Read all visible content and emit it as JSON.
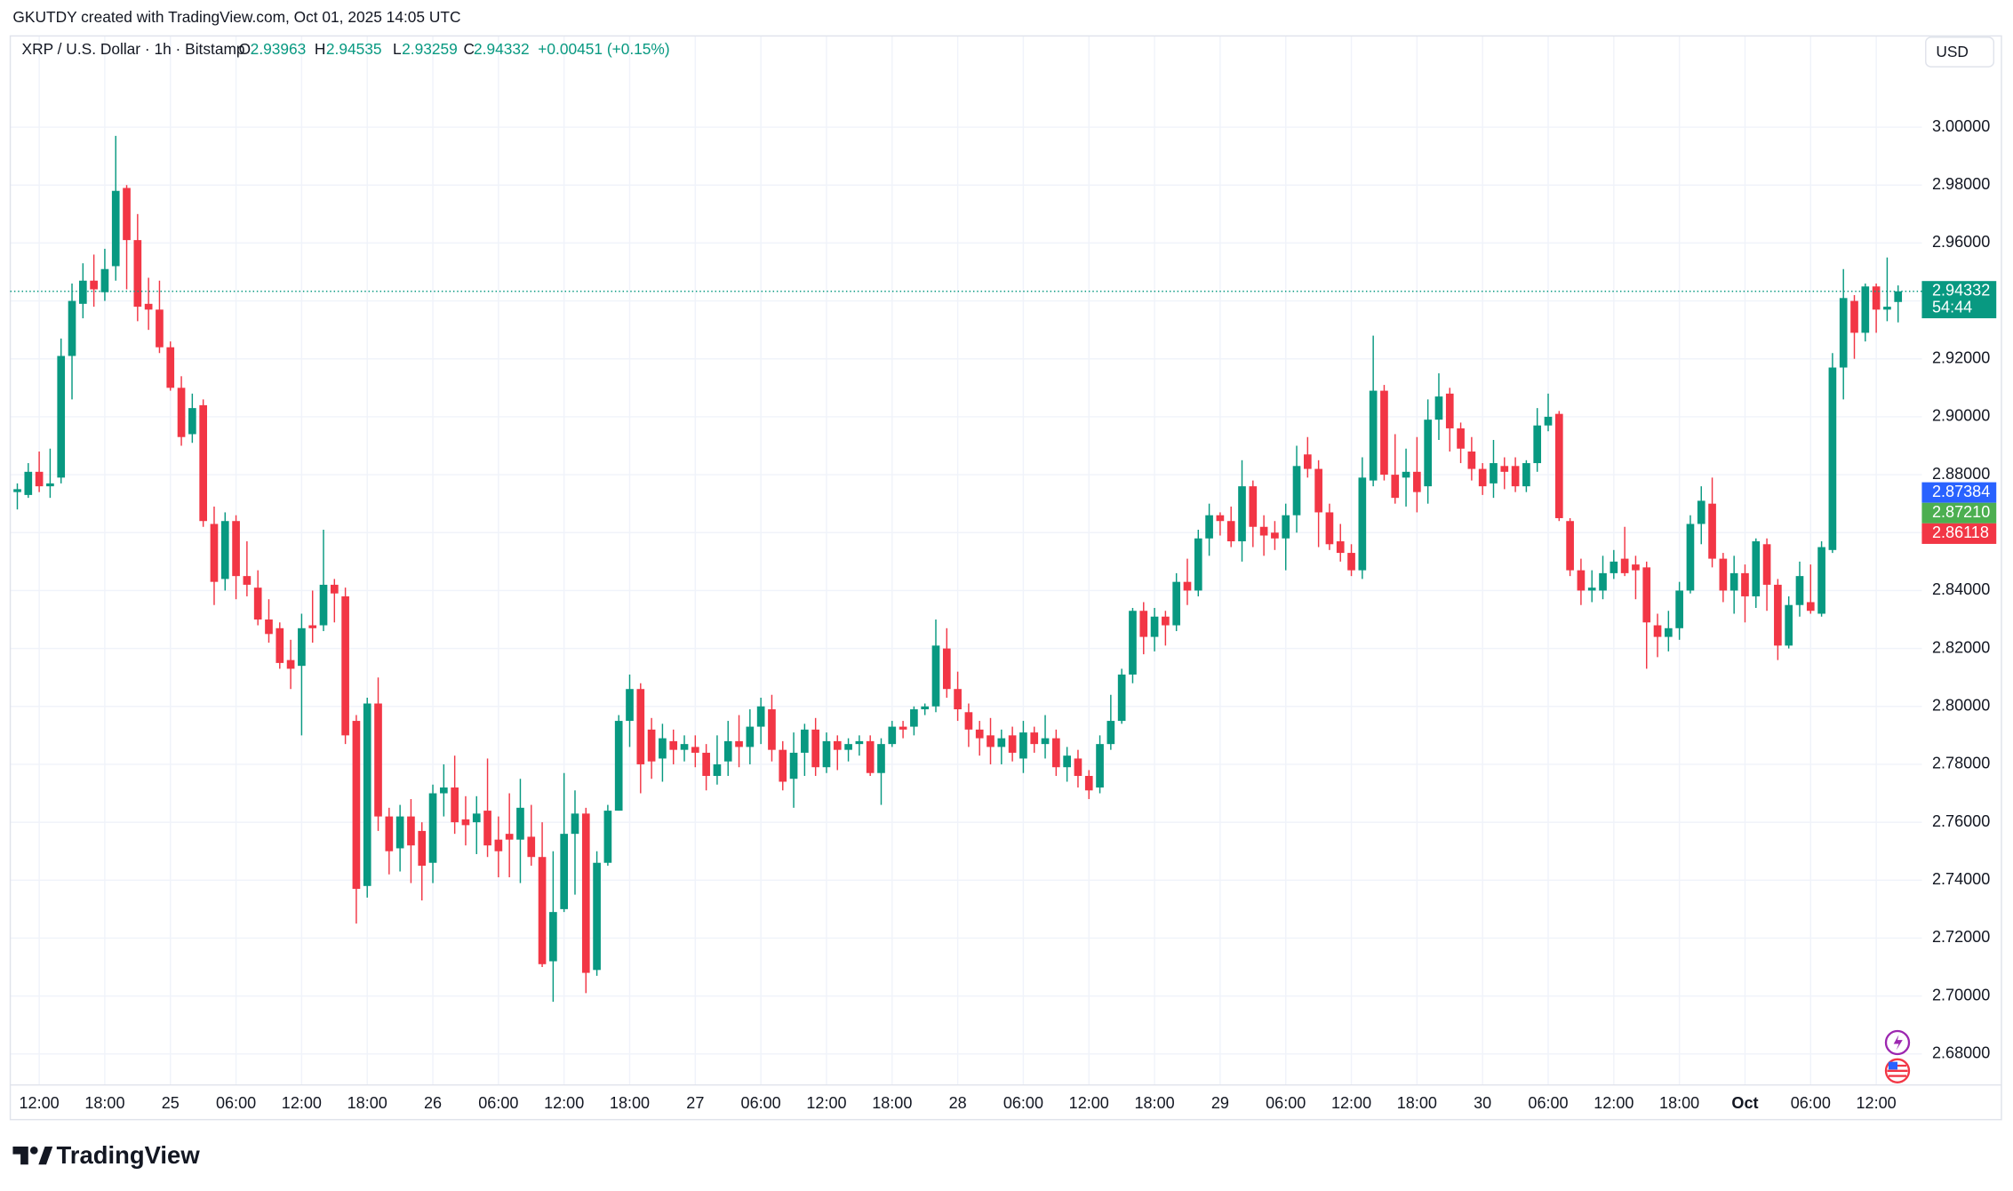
{
  "header": {
    "attribution": "GKUTDY created with TradingView.com, Oct 01, 2025 14:05 UTC"
  },
  "legend": {
    "symbol": "XRP / U.S. Dollar · 1h · Bitstamp",
    "open_label": "O",
    "high_label": "H",
    "low_label": "L",
    "close_label": "C",
    "change": "+0.00451 (+0.15%)"
  },
  "footer": {
    "brand": "TradingView"
  },
  "chart_data": {
    "type": "candlestick",
    "currency": "USD",
    "up_color": "#089981",
    "down_color": "#f23645",
    "grid": true,
    "x": [
      "2025-09-24 10:00",
      "2025-09-24 11:00",
      "2025-09-24 12:00",
      "2025-09-24 13:00",
      "2025-09-24 14:00",
      "2025-09-24 15:00",
      "2025-09-24 16:00",
      "2025-09-24 17:00",
      "2025-09-24 18:00",
      "2025-09-24 19:00",
      "2025-09-24 20:00",
      "2025-09-24 21:00",
      "2025-09-24 22:00",
      "2025-09-24 23:00",
      "2025-09-25 00:00",
      "2025-09-25 01:00",
      "2025-09-25 02:00",
      "2025-09-25 03:00",
      "2025-09-25 04:00",
      "2025-09-25 05:00",
      "2025-09-25 06:00",
      "2025-09-25 07:00",
      "2025-09-25 08:00",
      "2025-09-25 09:00",
      "2025-09-25 10:00",
      "2025-09-25 11:00",
      "2025-09-25 12:00",
      "2025-09-25 13:00",
      "2025-09-25 14:00",
      "2025-09-25 15:00",
      "2025-09-25 16:00",
      "2025-09-25 17:00",
      "2025-09-25 18:00",
      "2025-09-25 19:00",
      "2025-09-25 20:00",
      "2025-09-25 21:00",
      "2025-09-25 22:00",
      "2025-09-25 23:00",
      "2025-09-26 00:00",
      "2025-09-26 01:00",
      "2025-09-26 02:00",
      "2025-09-26 03:00",
      "2025-09-26 04:00",
      "2025-09-26 05:00",
      "2025-09-26 06:00",
      "2025-09-26 07:00",
      "2025-09-26 08:00",
      "2025-09-26 09:00",
      "2025-09-26 10:00",
      "2025-09-26 11:00",
      "2025-09-26 12:00",
      "2025-09-26 13:00",
      "2025-09-26 14:00",
      "2025-09-26 15:00",
      "2025-09-26 16:00",
      "2025-09-26 17:00",
      "2025-09-26 18:00",
      "2025-09-26 19:00",
      "2025-09-26 20:00",
      "2025-09-26 21:00",
      "2025-09-26 22:00",
      "2025-09-26 23:00",
      "2025-09-27 00:00",
      "2025-09-27 01:00",
      "2025-09-27 02:00",
      "2025-09-27 03:00",
      "2025-09-27 04:00",
      "2025-09-27 05:00",
      "2025-09-27 06:00",
      "2025-09-27 07:00",
      "2025-09-27 08:00",
      "2025-09-27 09:00",
      "2025-09-27 10:00",
      "2025-09-27 11:00",
      "2025-09-27 12:00",
      "2025-09-27 13:00",
      "2025-09-27 14:00",
      "2025-09-27 15:00",
      "2025-09-27 16:00",
      "2025-09-27 17:00",
      "2025-09-27 18:00",
      "2025-09-27 19:00",
      "2025-09-27 20:00",
      "2025-09-27 21:00",
      "2025-09-27 22:00",
      "2025-09-27 23:00",
      "2025-09-28 00:00",
      "2025-09-28 01:00",
      "2025-09-28 02:00",
      "2025-09-28 03:00",
      "2025-09-28 04:00",
      "2025-09-28 05:00",
      "2025-09-28 06:00",
      "2025-09-28 07:00",
      "2025-09-28 08:00",
      "2025-09-28 09:00",
      "2025-09-28 10:00",
      "2025-09-28 11:00",
      "2025-09-28 12:00",
      "2025-09-28 13:00",
      "2025-09-28 14:00",
      "2025-09-28 15:00",
      "2025-09-28 16:00",
      "2025-09-28 17:00",
      "2025-09-28 18:00",
      "2025-09-28 19:00",
      "2025-09-28 20:00",
      "2025-09-28 21:00",
      "2025-09-28 22:00",
      "2025-09-28 23:00",
      "2025-09-29 00:00",
      "2025-09-29 01:00",
      "2025-09-29 02:00",
      "2025-09-29 03:00",
      "2025-09-29 04:00",
      "2025-09-29 05:00",
      "2025-09-29 06:00",
      "2025-09-29 07:00",
      "2025-09-29 08:00",
      "2025-09-29 09:00",
      "2025-09-29 10:00",
      "2025-09-29 11:00",
      "2025-09-29 12:00",
      "2025-09-29 13:00",
      "2025-09-29 14:00",
      "2025-09-29 15:00",
      "2025-09-29 16:00",
      "2025-09-29 17:00",
      "2025-09-29 18:00",
      "2025-09-29 19:00",
      "2025-09-29 20:00",
      "2025-09-29 21:00",
      "2025-09-29 22:00",
      "2025-09-29 23:00",
      "2025-09-30 00:00",
      "2025-09-30 01:00",
      "2025-09-30 02:00",
      "2025-09-30 03:00",
      "2025-09-30 04:00",
      "2025-09-30 05:00",
      "2025-09-30 06:00",
      "2025-09-30 07:00",
      "2025-09-30 08:00",
      "2025-09-30 09:00",
      "2025-09-30 10:00",
      "2025-09-30 11:00",
      "2025-09-30 12:00",
      "2025-09-30 13:00",
      "2025-09-30 14:00",
      "2025-09-30 15:00",
      "2025-09-30 16:00",
      "2025-09-30 17:00",
      "2025-09-30 18:00",
      "2025-09-30 19:00",
      "2025-09-30 20:00",
      "2025-09-30 21:00",
      "2025-09-30 22:00",
      "2025-09-30 23:00",
      "2025-10-01 00:00",
      "2025-10-01 01:00",
      "2025-10-01 02:00",
      "2025-10-01 03:00",
      "2025-10-01 04:00",
      "2025-10-01 05:00",
      "2025-10-01 06:00",
      "2025-10-01 07:00",
      "2025-10-01 08:00",
      "2025-10-01 09:00",
      "2025-10-01 10:00",
      "2025-10-01 11:00",
      "2025-10-01 12:00",
      "2025-10-01 13:00",
      "2025-10-01 14:00"
    ],
    "open": [
      2.874,
      2.873,
      2.881,
      2.876,
      2.879,
      2.921,
      2.939,
      2.947,
      2.943,
      2.952,
      2.979,
      2.961,
      2.939,
      2.937,
      2.924,
      2.91,
      2.894,
      2.904,
      2.863,
      2.844,
      2.864,
      2.845,
      2.841,
      2.83,
      2.827,
      2.816,
      2.814,
      2.828,
      2.828,
      2.842,
      2.838,
      2.795,
      2.738,
      2.801,
      2.762,
      2.751,
      2.762,
      2.757,
      2.746,
      2.77,
      2.772,
      2.761,
      2.76,
      2.764,
      2.754,
      2.756,
      2.754,
      2.755,
      2.748,
      2.712,
      2.73,
      2.756,
      2.763,
      2.709,
      2.746,
      2.764,
      2.795,
      2.806,
      2.792,
      2.782,
      2.788,
      2.785,
      2.786,
      2.784,
      2.776,
      2.781,
      2.788,
      2.786,
      2.793,
      2.799,
      2.785,
      2.775,
      2.784,
      2.792,
      2.779,
      2.788,
      2.785,
      2.787,
      2.788,
      2.777,
      2.787,
      2.793,
      2.793,
      2.799,
      2.8,
      2.82,
      2.806,
      2.798,
      2.792,
      2.79,
      2.786,
      2.79,
      2.782,
      2.791,
      2.787,
      2.789,
      2.779,
      2.782,
      2.776,
      2.772,
      2.787,
      2.795,
      2.811,
      2.833,
      2.824,
      2.831,
      2.828,
      2.843,
      2.84,
      2.858,
      2.866,
      2.864,
      2.857,
      2.876,
      2.862,
      2.86,
      2.858,
      2.866,
      2.887,
      2.882,
      2.867,
      2.857,
      2.853,
      2.847,
      2.878,
      2.909,
      2.88,
      2.879,
      2.881,
      2.876,
      2.899,
      2.908,
      2.896,
      2.888,
      2.882,
      2.877,
      2.883,
      2.883,
      2.876,
      2.884,
      2.897,
      2.901,
      2.864,
      2.847,
      2.84,
      2.84,
      2.846,
      2.851,
      2.849,
      2.848,
      2.828,
      2.824,
      2.827,
      2.84,
      2.863,
      2.87,
      2.851,
      2.84,
      2.846,
      2.838,
      2.856,
      2.842,
      2.821,
      2.835,
      2.836,
      2.832,
      2.854,
      2.917,
      2.94,
      2.929,
      2.945,
      2.937,
      2.93963
    ],
    "high": [
      2.877,
      2.884,
      2.888,
      2.889,
      2.927,
      2.946,
      2.953,
      2.956,
      2.958,
      2.997,
      2.98,
      2.97,
      2.948,
      2.947,
      2.926,
      2.914,
      2.908,
      2.906,
      2.869,
      2.867,
      2.866,
      2.857,
      2.847,
      2.837,
      2.829,
      2.823,
      2.832,
      2.84,
      2.861,
      2.844,
      2.841,
      2.797,
      2.803,
      2.81,
      2.765,
      2.766,
      2.768,
      2.76,
      2.773,
      2.78,
      2.783,
      2.769,
      2.769,
      2.782,
      2.762,
      2.77,
      2.775,
      2.766,
      2.76,
      2.75,
      2.777,
      2.771,
      2.765,
      2.75,
      2.766,
      2.797,
      2.811,
      2.808,
      2.796,
      2.794,
      2.792,
      2.79,
      2.79,
      2.787,
      2.79,
      2.795,
      2.797,
      2.799,
      2.803,
      2.804,
      2.788,
      2.791,
      2.794,
      2.796,
      2.791,
      2.79,
      2.789,
      2.79,
      2.79,
      2.789,
      2.795,
      2.795,
      2.8,
      2.801,
      2.83,
      2.827,
      2.812,
      2.801,
      2.795,
      2.796,
      2.792,
      2.793,
      2.795,
      2.793,
      2.797,
      2.792,
      2.786,
      2.785,
      2.778,
      2.79,
      2.804,
      2.813,
      2.834,
      2.836,
      2.834,
      2.833,
      2.846,
      2.851,
      2.861,
      2.87,
      2.867,
      2.869,
      2.885,
      2.878,
      2.866,
      2.864,
      2.87,
      2.89,
      2.893,
      2.885,
      2.87,
      2.863,
      2.856,
      2.886,
      2.928,
      2.911,
      2.894,
      2.889,
      2.893,
      2.906,
      2.915,
      2.91,
      2.898,
      2.893,
      2.884,
      2.892,
      2.886,
      2.886,
      2.885,
      2.903,
      2.908,
      2.902,
      2.865,
      2.851,
      2.847,
      2.852,
      2.854,
      2.862,
      2.852,
      2.85,
      2.832,
      2.833,
      2.843,
      2.866,
      2.876,
      2.879,
      2.853,
      2.852,
      2.849,
      2.858,
      2.858,
      2.844,
      2.838,
      2.85,
      2.849,
      2.857,
      2.922,
      2.951,
      2.942,
      2.946,
      2.946,
      2.955,
      2.94535
    ],
    "low": [
      2.868,
      2.872,
      2.874,
      2.872,
      2.877,
      2.906,
      2.934,
      2.938,
      2.94,
      2.947,
      2.944,
      2.933,
      2.93,
      2.922,
      2.909,
      2.89,
      2.891,
      2.862,
      2.835,
      2.84,
      2.837,
      2.838,
      2.828,
      2.822,
      2.813,
      2.806,
      2.79,
      2.822,
      2.826,
      2.829,
      2.787,
      2.725,
      2.734,
      2.757,
      2.742,
      2.743,
      2.739,
      2.733,
      2.739,
      2.762,
      2.756,
      2.752,
      2.749,
      2.748,
      2.741,
      2.741,
      2.739,
      2.745,
      2.71,
      2.698,
      2.729,
      2.735,
      2.701,
      2.707,
      2.745,
      2.764,
      2.786,
      2.77,
      2.775,
      2.774,
      2.78,
      2.781,
      2.779,
      2.771,
      2.773,
      2.776,
      2.779,
      2.78,
      2.787,
      2.781,
      2.771,
      2.765,
      2.776,
      2.776,
      2.777,
      2.778,
      2.781,
      2.783,
      2.776,
      2.766,
      2.786,
      2.789,
      2.79,
      2.797,
      2.798,
      2.803,
      2.795,
      2.786,
      2.783,
      2.78,
      2.78,
      2.781,
      2.777,
      2.784,
      2.782,
      2.776,
      2.774,
      2.772,
      2.768,
      2.77,
      2.785,
      2.794,
      2.808,
      2.818,
      2.819,
      2.821,
      2.826,
      2.835,
      2.838,
      2.852,
      2.859,
      2.855,
      2.85,
      2.855,
      2.852,
      2.854,
      2.847,
      2.86,
      2.879,
      2.855,
      2.854,
      2.85,
      2.845,
      2.844,
      2.876,
      2.878,
      2.87,
      2.869,
      2.867,
      2.87,
      2.892,
      2.888,
      2.884,
      2.878,
      2.873,
      2.872,
      2.875,
      2.874,
      2.874,
      2.881,
      2.895,
      2.864,
      2.845,
      2.835,
      2.836,
      2.837,
      2.844,
      2.845,
      2.837,
      2.813,
      2.817,
      2.819,
      2.823,
      2.839,
      2.856,
      2.848,
      2.836,
      2.832,
      2.829,
      2.834,
      2.833,
      2.816,
      2.82,
      2.831,
      2.832,
      2.831,
      2.853,
      2.906,
      2.92,
      2.926,
      2.929,
      2.933,
      2.93259
    ],
    "close": [
      2.875,
      2.881,
      2.876,
      2.877,
      2.921,
      2.94,
      2.947,
      2.944,
      2.951,
      2.978,
      2.961,
      2.938,
      2.937,
      2.924,
      2.91,
      2.893,
      2.903,
      2.864,
      2.843,
      2.864,
      2.845,
      2.842,
      2.83,
      2.825,
      2.815,
      2.813,
      2.827,
      2.827,
      2.842,
      2.839,
      2.79,
      2.737,
      2.801,
      2.762,
      2.75,
      2.762,
      2.752,
      2.745,
      2.77,
      2.772,
      2.76,
      2.759,
      2.763,
      2.752,
      2.75,
      2.754,
      2.765,
      2.748,
      2.711,
      2.729,
      2.756,
      2.763,
      2.708,
      2.746,
      2.764,
      2.795,
      2.806,
      2.78,
      2.781,
      2.789,
      2.785,
      2.787,
      2.784,
      2.776,
      2.78,
      2.788,
      2.786,
      2.793,
      2.8,
      2.785,
      2.774,
      2.784,
      2.792,
      2.779,
      2.788,
      2.785,
      2.787,
      2.788,
      2.777,
      2.787,
      2.793,
      2.792,
      2.799,
      2.8,
      2.821,
      2.806,
      2.799,
      2.792,
      2.789,
      2.786,
      2.789,
      2.784,
      2.791,
      2.787,
      2.789,
      2.779,
      2.783,
      2.776,
      2.771,
      2.787,
      2.795,
      2.811,
      2.833,
      2.824,
      2.831,
      2.828,
      2.843,
      2.84,
      2.858,
      2.866,
      2.864,
      2.857,
      2.876,
      2.862,
      2.859,
      2.858,
      2.866,
      2.883,
      2.882,
      2.867,
      2.856,
      2.853,
      2.847,
      2.879,
      2.909,
      2.88,
      2.872,
      2.881,
      2.874,
      2.899,
      2.907,
      2.896,
      2.889,
      2.882,
      2.876,
      2.884,
      2.881,
      2.876,
      2.884,
      2.897,
      2.9,
      2.865,
      2.847,
      2.84,
      2.841,
      2.846,
      2.85,
      2.846,
      2.847,
      2.829,
      2.824,
      2.827,
      2.84,
      2.863,
      2.871,
      2.851,
      2.84,
      2.846,
      2.838,
      2.857,
      2.842,
      2.821,
      2.835,
      2.845,
      2.833,
      2.855,
      2.917,
      2.941,
      2.929,
      2.945,
      2.937,
      2.938,
      2.94332
    ],
    "ylim": [
      2.6693,
      3.0306
    ],
    "yticks": [
      {
        "value": 2.68,
        "label": "2.68000"
      },
      {
        "value": 2.7,
        "label": "2.70000"
      },
      {
        "value": 2.72,
        "label": "2.72000"
      },
      {
        "value": 2.74,
        "label": "2.74000"
      },
      {
        "value": 2.76,
        "label": "2.76000"
      },
      {
        "value": 2.78,
        "label": "2.78000"
      },
      {
        "value": 2.8,
        "label": "2.80000"
      },
      {
        "value": 2.82,
        "label": "2.82000"
      },
      {
        "value": 2.84,
        "label": "2.84000"
      },
      {
        "value": 2.86,
        "label": "2.86000"
      },
      {
        "value": 2.88,
        "label": "2.88000"
      },
      {
        "value": 2.9,
        "label": "2.90000"
      },
      {
        "value": 2.92,
        "label": "2.92000"
      },
      {
        "value": 2.94,
        "label": "2.94000"
      },
      {
        "value": 2.96,
        "label": "2.96000"
      },
      {
        "value": 2.98,
        "label": "2.98000"
      },
      {
        "value": 3.0,
        "label": "3.00000"
      }
    ],
    "xticks": [
      {
        "value": "2025-09-24 12:00",
        "label": "12:00"
      },
      {
        "value": "2025-09-24 18:00",
        "label": "18:00"
      },
      {
        "value": "2025-09-25 00:00",
        "label": "25"
      },
      {
        "value": "2025-09-25 06:00",
        "label": "06:00"
      },
      {
        "value": "2025-09-25 12:00",
        "label": "12:00"
      },
      {
        "value": "2025-09-25 18:00",
        "label": "18:00"
      },
      {
        "value": "2025-09-26 00:00",
        "label": "26"
      },
      {
        "value": "2025-09-26 06:00",
        "label": "06:00"
      },
      {
        "value": "2025-09-26 12:00",
        "label": "12:00"
      },
      {
        "value": "2025-09-26 18:00",
        "label": "18:00"
      },
      {
        "value": "2025-09-27 00:00",
        "label": "27"
      },
      {
        "value": "2025-09-27 06:00",
        "label": "06:00"
      },
      {
        "value": "2025-09-27 12:00",
        "label": "12:00"
      },
      {
        "value": "2025-09-27 18:00",
        "label": "18:00"
      },
      {
        "value": "2025-09-28 00:00",
        "label": "28"
      },
      {
        "value": "2025-09-28 06:00",
        "label": "06:00"
      },
      {
        "value": "2025-09-28 12:00",
        "label": "12:00"
      },
      {
        "value": "2025-09-28 18:00",
        "label": "18:00"
      },
      {
        "value": "2025-09-29 00:00",
        "label": "29"
      },
      {
        "value": "2025-09-29 06:00",
        "label": "06:00"
      },
      {
        "value": "2025-09-29 12:00",
        "label": "12:00"
      },
      {
        "value": "2025-09-29 18:00",
        "label": "18:00"
      },
      {
        "value": "2025-09-30 00:00",
        "label": "30"
      },
      {
        "value": "2025-09-30 06:00",
        "label": "06:00"
      },
      {
        "value": "2025-09-30 12:00",
        "label": "12:00"
      },
      {
        "value": "2025-09-30 18:00",
        "label": "18:00"
      },
      {
        "value": "2025-10-01 00:00",
        "label": "Oct",
        "bold": true
      },
      {
        "value": "2025-10-01 06:00",
        "label": "06:00"
      },
      {
        "value": "2025-10-01 12:00",
        "label": "12:00"
      }
    ],
    "last_price": {
      "value": 2.94332,
      "label": "2.94332",
      "countdown": "54:44"
    },
    "price_labels": [
      {
        "value": 2.87384,
        "label": "2.87384",
        "color": "#2962ff"
      },
      {
        "value": 2.8721,
        "label": "2.87210",
        "color": "#4caf50"
      },
      {
        "value": 2.86118,
        "label": "2.86118",
        "color": "#f23645"
      }
    ]
  }
}
